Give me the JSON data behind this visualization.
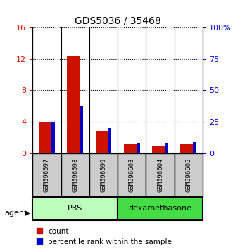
{
  "title": "GDS5036 / 35468",
  "samples": [
    "GSM596597",
    "GSM596598",
    "GSM596599",
    "GSM596603",
    "GSM596604",
    "GSM596605"
  ],
  "count_values": [
    3.9,
    12.3,
    2.8,
    1.1,
    1.0,
    1.1
  ],
  "percentile_values": [
    25.0,
    37.5,
    20.0,
    8.0,
    8.5,
    9.0
  ],
  "ylim_left": [
    0,
    16
  ],
  "ylim_right": [
    0,
    100
  ],
  "yticks_left": [
    0,
    4,
    8,
    12,
    16
  ],
  "yticks_right": [
    0,
    25,
    50,
    75,
    100
  ],
  "ytick_labels_left": [
    "0",
    "4",
    "8",
    "12",
    "16"
  ],
  "ytick_labels_right": [
    "0",
    "25",
    "50",
    "75",
    "100%"
  ],
  "bar_color_red": "#cc1100",
  "bar_color_blue": "#0000cc",
  "red_bar_width": 0.45,
  "blue_bar_width": 0.12,
  "xticklabel_bg": "#cccccc",
  "pbs_color": "#bbffbb",
  "dex_color": "#44dd44",
  "legend_items": [
    "count",
    "percentile rank within the sample"
  ],
  "agent_label": "agent",
  "group_ranges": [
    [
      0,
      2,
      "PBS"
    ],
    [
      3,
      5,
      "dexamethasone"
    ]
  ]
}
